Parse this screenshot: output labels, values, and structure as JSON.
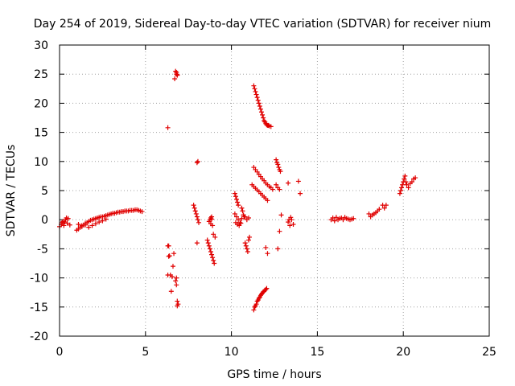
{
  "chart_data": {
    "type": "scatter",
    "title": "Day 254 of 2019, Sidereal Day-to-day VTEC variation (SDTVAR) for receiver nium",
    "xlabel": "GPS time / hours",
    "ylabel": "SDTVAR / TECUs",
    "xlim": [
      0,
      25
    ],
    "ylim": [
      -20,
      30
    ],
    "xticks": [
      "0",
      "5",
      "10",
      "15",
      "20",
      "25"
    ],
    "yticks": [
      "-20",
      "-15",
      "-10",
      "-5",
      "0",
      "5",
      "10",
      "15",
      "20",
      "25",
      "30"
    ],
    "grid": true,
    "marker": "+",
    "color": "#e00000",
    "series": [
      {
        "name": "SDTVAR",
        "x": [
          0.0,
          0.1,
          0.15,
          0.2,
          0.25,
          0.3,
          0.35,
          0.4,
          0.45,
          0.5,
          0.6,
          1.0,
          1.1,
          1.2,
          1.3,
          1.4,
          1.5,
          1.6,
          1.7,
          1.8,
          1.9,
          2.0,
          2.1,
          2.2,
          2.3,
          2.4,
          2.5,
          2.6,
          2.7,
          2.8,
          2.9,
          3.0,
          3.1,
          3.2,
          3.3,
          3.4,
          3.5,
          3.6,
          3.7,
          3.8,
          3.9,
          4.0,
          4.1,
          4.2,
          4.3,
          4.4,
          4.5,
          4.6,
          4.7,
          4.8,
          1.1,
          1.3,
          1.5,
          1.7,
          1.9,
          2.1,
          2.3,
          2.5,
          2.7,
          6.3,
          6.35,
          6.4,
          6.45,
          6.5,
          6.55,
          6.6,
          6.65,
          6.7,
          6.75,
          6.8,
          6.85,
          6.3,
          6.35,
          6.3,
          6.75,
          6.8,
          6.85,
          6.9,
          6.85,
          6.8,
          6.8,
          6.85,
          8.0,
          8.05,
          7.8,
          7.85,
          7.9,
          7.95,
          8.0,
          8.05,
          8.1,
          8.0,
          8.7,
          8.75,
          8.8,
          8.85,
          8.9,
          8.95,
          8.8,
          8.85,
          8.6,
          8.65,
          8.7,
          8.75,
          8.8,
          8.85,
          8.9,
          8.95,
          9.0,
          9.05,
          10.2,
          10.25,
          10.3,
          10.35,
          10.4,
          10.2,
          10.3,
          10.4,
          10.5,
          10.6,
          10.7,
          10.8,
          10.9,
          11.0,
          10.25,
          10.35,
          10.45,
          10.55,
          10.6,
          10.65,
          10.7,
          10.75,
          10.8,
          10.85,
          10.9,
          10.95,
          11.0,
          11.05,
          11.3,
          11.35,
          11.4,
          11.45,
          11.5,
          11.55,
          11.6,
          11.65,
          11.7,
          11.75,
          11.8,
          11.85,
          11.9,
          11.95,
          12.0,
          12.05,
          12.1,
          12.15,
          12.2,
          12.3,
          11.3,
          11.4,
          11.5,
          11.6,
          11.7,
          11.8,
          11.9,
          12.0,
          12.1,
          12.2,
          12.3,
          12.4,
          11.2,
          11.3,
          11.4,
          11.5,
          11.6,
          11.7,
          11.8,
          11.9,
          12.0,
          12.1,
          11.3,
          11.35,
          11.4,
          11.45,
          11.5,
          11.55,
          11.6,
          11.65,
          11.7,
          11.75,
          11.8,
          11.85,
          11.9,
          11.95,
          12.0,
          12.05,
          12.0,
          12.1,
          12.6,
          12.65,
          12.7,
          12.75,
          12.8,
          12.85,
          12.6,
          12.7,
          12.8,
          12.9,
          12.7,
          12.8,
          13.3,
          13.35,
          13.3,
          13.4,
          13.45,
          13.5,
          13.6,
          13.9,
          14.0,
          15.8,
          15.9,
          16.0,
          16.1,
          16.2,
          16.3,
          16.4,
          16.5,
          16.6,
          16.7,
          16.8,
          16.9,
          17.0,
          17.1,
          18.0,
          18.1,
          18.2,
          18.3,
          18.4,
          18.5,
          18.6,
          18.8,
          18.9,
          19.0,
          19.8,
          19.85,
          19.9,
          19.95,
          20.0,
          20.05,
          20.1,
          20.15,
          20.2,
          20.3,
          20.4,
          20.5,
          20.6,
          20.7
        ],
        "y": [
          -1.2,
          -0.8,
          -0.5,
          -0.3,
          -1.0,
          -0.4,
          0.0,
          0.3,
          -0.6,
          0.2,
          -0.9,
          -1.8,
          -1.6,
          -1.3,
          -1.0,
          -0.9,
          -0.6,
          -0.5,
          -0.3,
          -0.1,
          0.0,
          0.1,
          0.2,
          0.3,
          0.4,
          0.5,
          0.5,
          0.6,
          0.7,
          0.8,
          0.9,
          1.0,
          1.1,
          1.1,
          1.2,
          1.3,
          1.3,
          1.4,
          1.4,
          1.5,
          1.5,
          1.5,
          1.6,
          1.6,
          1.6,
          1.7,
          1.7,
          1.6,
          1.5,
          1.4,
          -0.8,
          -1.2,
          -0.9,
          -1.3,
          -1.0,
          -0.7,
          -0.4,
          -0.2,
          0.1,
          15.8,
          -4.5,
          -6.2,
          -9.5,
          -12.3,
          -9.8,
          -8.0,
          -5.8,
          24.2,
          25.5,
          25.0,
          24.8,
          -4.5,
          -6.3,
          -9.5,
          -10.5,
          -11.2,
          -14.0,
          -14.5,
          -14.8,
          -10.0,
          25.3,
          24.9,
          9.8,
          10.0,
          2.5,
          2.0,
          1.5,
          1.0,
          0.5,
          0.0,
          -0.5,
          -4.0,
          -0.3,
          0.0,
          0.3,
          0.5,
          -1.0,
          -2.5,
          -0.7,
          0.1,
          -3.5,
          -4.0,
          -4.5,
          -5.0,
          -5.5,
          -6.0,
          -6.5,
          -7.0,
          -7.5,
          -3.0,
          4.5,
          4.0,
          3.5,
          3.0,
          2.5,
          1.0,
          0.5,
          0.0,
          -0.5,
          0.2,
          0.8,
          0.5,
          0.0,
          0.3,
          -0.5,
          -0.8,
          -1.0,
          -0.6,
          2.0,
          1.5,
          0.8,
          0.5,
          -4.0,
          -4.5,
          -5.0,
          -5.5,
          -3.5,
          -3.0,
          23.0,
          22.5,
          22.0,
          21.5,
          21.0,
          20.5,
          20.0,
          19.5,
          19.0,
          18.5,
          18.0,
          17.5,
          17.0,
          16.8,
          16.5,
          16.3,
          16.2,
          16.2,
          16.1,
          16.0,
          9.0,
          8.6,
          8.2,
          7.8,
          7.4,
          7.0,
          6.7,
          6.3,
          6.0,
          5.7,
          5.5,
          5.2,
          6.0,
          5.7,
          5.4,
          5.1,
          4.8,
          4.5,
          4.2,
          3.9,
          3.6,
          3.3,
          -15.5,
          -15.0,
          -14.8,
          -14.5,
          -14.0,
          -13.8,
          -13.5,
          -13.3,
          -13.0,
          -12.8,
          -12.6,
          -12.4,
          -12.3,
          -12.1,
          -12.0,
          -11.8,
          -4.8,
          -5.8,
          10.3,
          9.8,
          9.5,
          9.0,
          8.6,
          8.3,
          6.0,
          5.5,
          5.2,
          0.8,
          -5.0,
          -2.0,
          6.3,
          0.0,
          -0.4,
          -1.0,
          0.4,
          0.0,
          -0.8,
          6.6,
          4.5,
          0.0,
          0.3,
          -0.2,
          0.4,
          0.0,
          0.2,
          0.3,
          0.0,
          0.4,
          0.2,
          0.1,
          0.0,
          0.1,
          0.2,
          1.0,
          0.5,
          0.8,
          1.0,
          1.2,
          1.5,
          1.8,
          2.5,
          2.0,
          2.5,
          4.5,
          5.0,
          5.5,
          6.0,
          6.5,
          7.0,
          7.5,
          6.5,
          6.0,
          5.5,
          6.2,
          6.5,
          7.0,
          7.2
        ]
      }
    ]
  }
}
